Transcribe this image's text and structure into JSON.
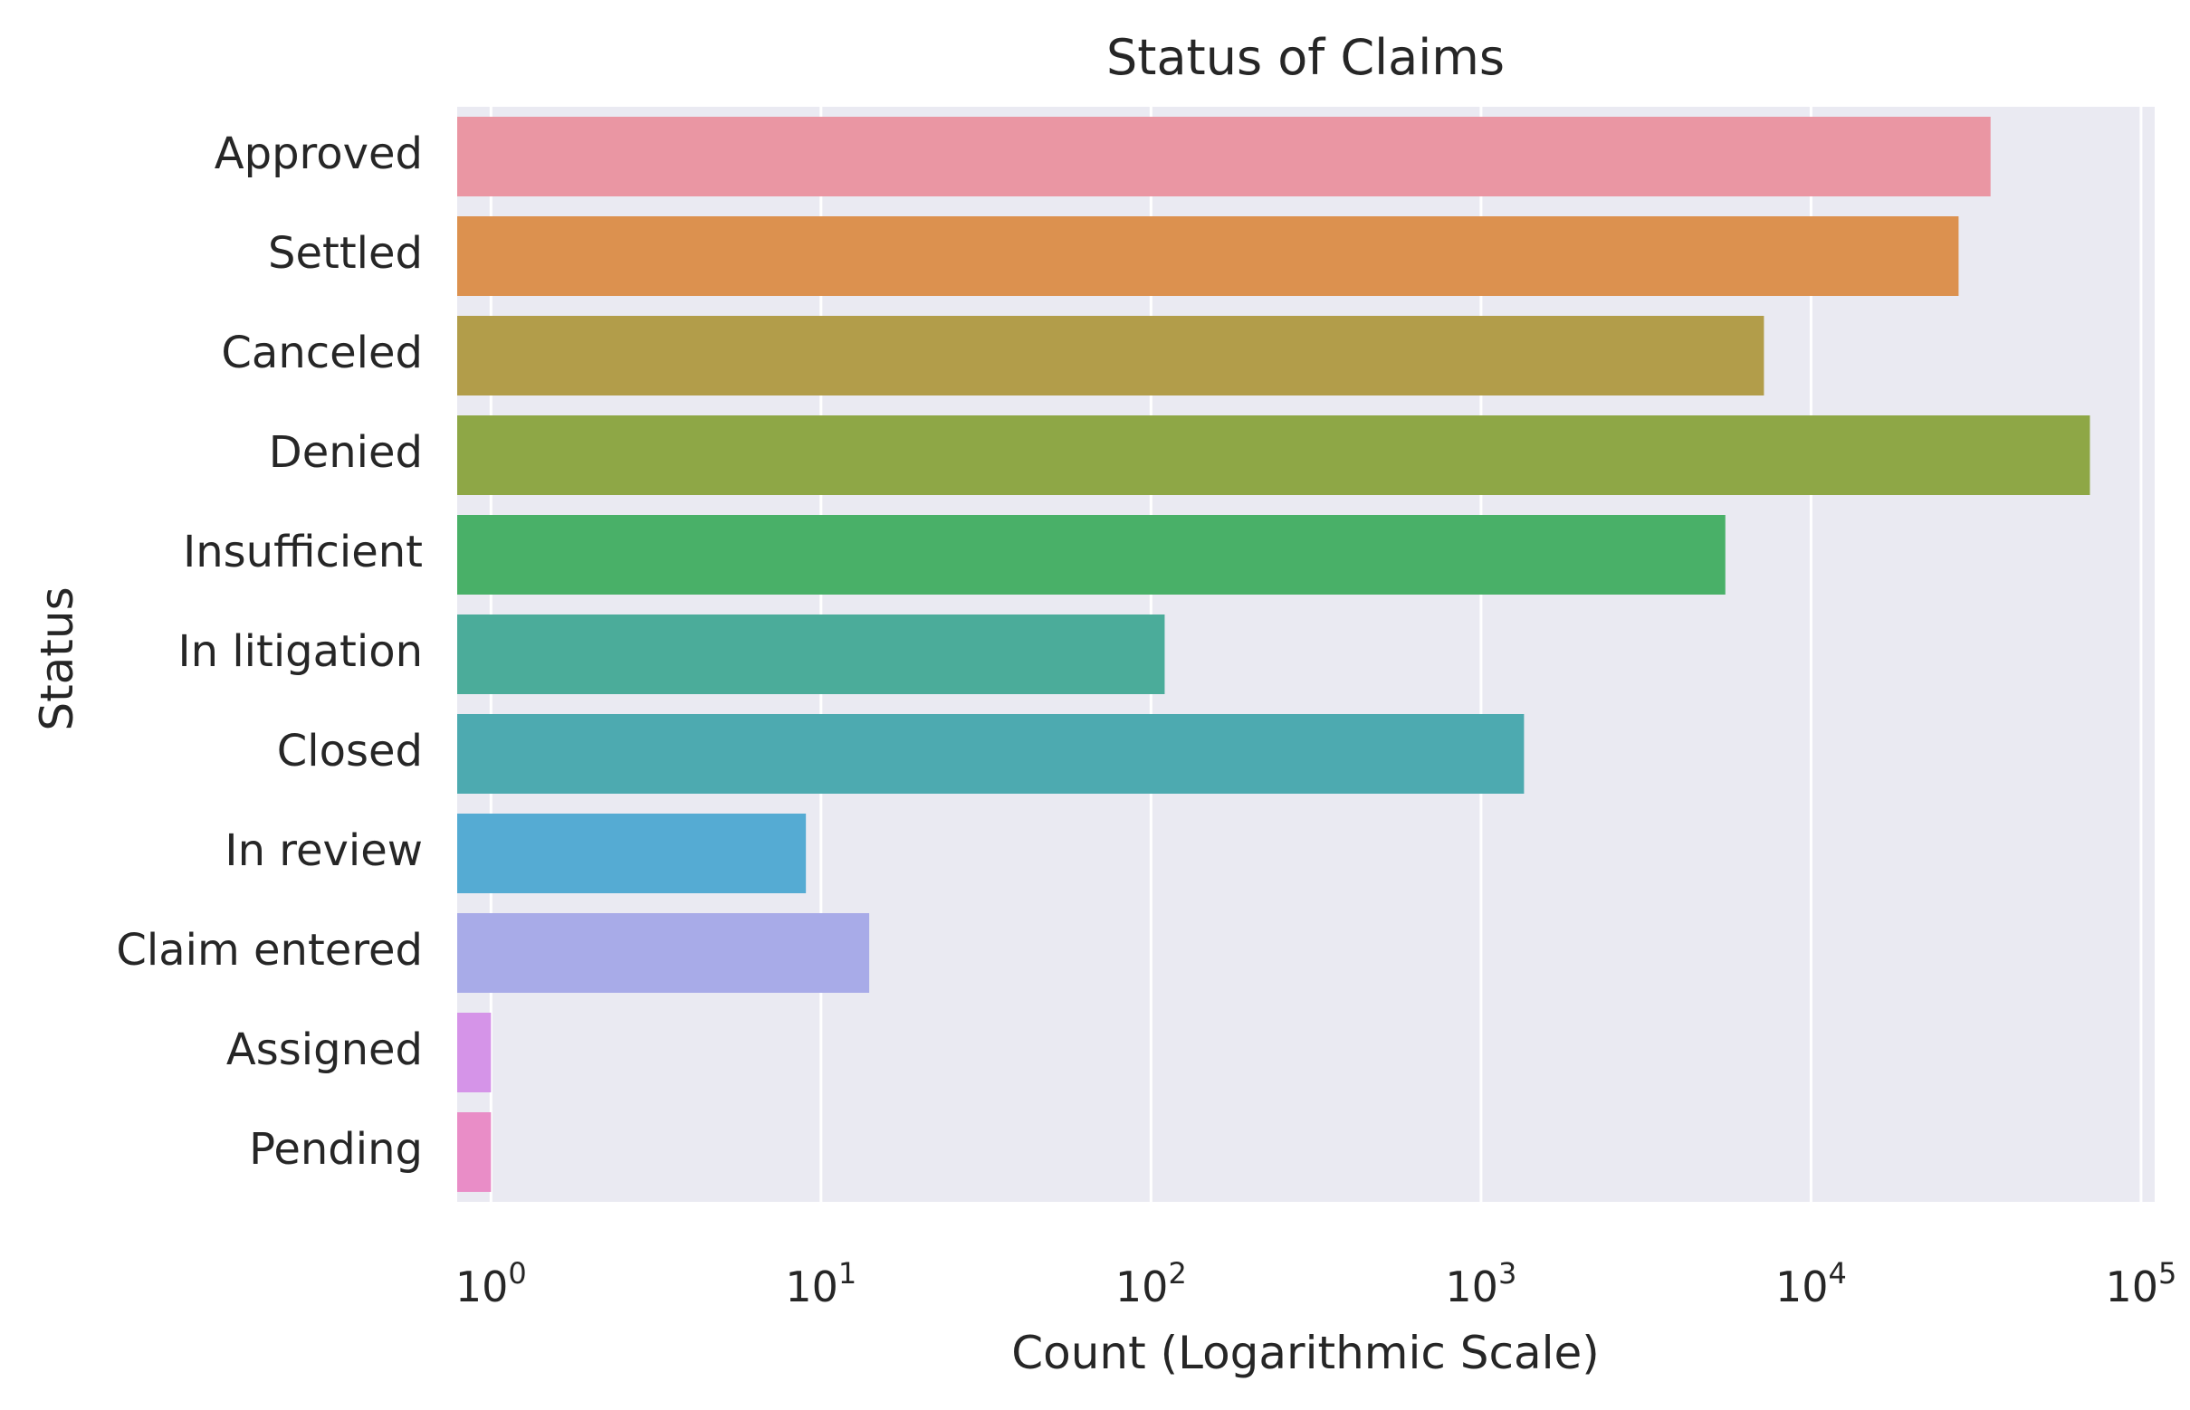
{
  "chart_data": {
    "type": "bar",
    "orientation": "horizontal",
    "title": "Status of Claims",
    "xlabel": "Count (Logarithmic Scale)",
    "ylabel": "Status",
    "x_scale": "log",
    "xlim": [
      0.79,
      110000
    ],
    "x_ticks": [
      1,
      10,
      100,
      1000,
      10000,
      100000
    ],
    "x_tick_labels": [
      {
        "base": "10",
        "exp": "0"
      },
      {
        "base": "10",
        "exp": "1"
      },
      {
        "base": "10",
        "exp": "2"
      },
      {
        "base": "10",
        "exp": "3"
      },
      {
        "base": "10",
        "exp": "4"
      },
      {
        "base": "10",
        "exp": "5"
      }
    ],
    "grid": true,
    "legend": "none",
    "categories": [
      "Approved",
      "Settled",
      "Canceled",
      "Denied",
      "Insufficient",
      "In litigation",
      "Closed",
      "In review",
      "Claim entered",
      "Assigned",
      "Pending"
    ],
    "values": [
      35000,
      28000,
      7200,
      70000,
      5500,
      110,
      1350,
      9,
      14,
      1,
      1
    ],
    "colors": [
      "#ea96a3",
      "#dc914f",
      "#b29d4a",
      "#8ea746",
      "#49b068",
      "#4bac9a",
      "#4daab0",
      "#55abd3",
      "#a8abe8",
      "#d594e8",
      "#e98dc7"
    ],
    "background_color": "#eaeaf2",
    "grid_color": "#ffffff"
  }
}
